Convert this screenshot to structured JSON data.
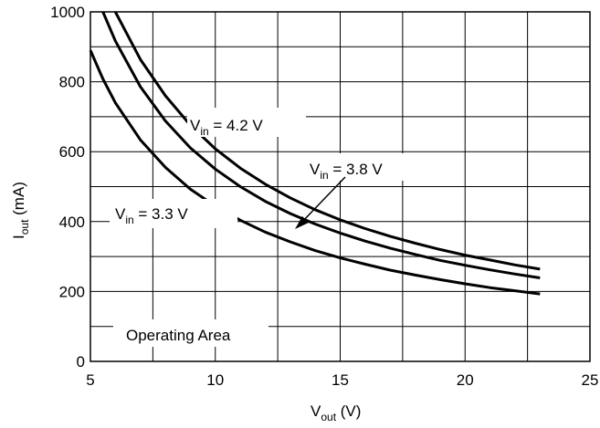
{
  "chart_data": {
    "type": "line",
    "title": "",
    "xlabel": {
      "main": "V",
      "sub": "out",
      "unit": " (V)"
    },
    "ylabel": {
      "main": "I",
      "sub": "out",
      "unit": " (mA)"
    },
    "xlim": [
      5,
      25
    ],
    "ylim": [
      0,
      1000
    ],
    "grid": true,
    "x_ticks": [
      "5",
      "10",
      "15",
      "20",
      "25"
    ],
    "y_ticks": [
      "0",
      "200",
      "400",
      "600",
      "800",
      "1000"
    ],
    "series": [
      {
        "name": "Vin = 3.3 V",
        "x": [
          5.0,
          5.5,
          6,
          7,
          8,
          9,
          10,
          11,
          12,
          13,
          14,
          15,
          16,
          17,
          18,
          19,
          20,
          21,
          22,
          23
        ],
        "y": [
          890,
          808,
          740,
          634,
          555,
          493,
          444,
          404,
          370,
          342,
          317,
          296,
          278,
          261,
          247,
          234,
          222,
          211,
          202,
          193
        ]
      },
      {
        "name": "Vin = 3.8 V",
        "x": [
          5.5,
          6,
          7,
          8,
          9,
          10,
          11,
          12,
          13,
          14,
          15,
          16,
          17,
          18,
          19,
          20,
          21,
          22,
          23
        ],
        "y": [
          1000,
          917,
          786,
          688,
          611,
          550,
          500,
          458,
          423,
          393,
          367,
          344,
          324,
          306,
          289,
          275,
          262,
          250,
          239
        ]
      },
      {
        "name": "Vin = 4.2 V",
        "x": [
          6,
          7,
          8,
          9,
          10,
          11,
          12,
          13,
          14,
          15,
          16,
          17,
          18,
          19,
          20,
          21,
          22,
          23
        ],
        "y": [
          1000,
          864,
          760,
          676,
          608,
          553,
          507,
          468,
          434,
          405,
          380,
          358,
          338,
          320,
          304,
          290,
          276,
          264
        ]
      }
    ],
    "annotations": {
      "vin_42": {
        "prefix": "V",
        "sub": "in",
        "suffix": " = 4.2 V"
      },
      "vin_38": {
        "prefix": "V",
        "sub": "in",
        "suffix": " = 3.8 V"
      },
      "vin_33": {
        "prefix": "V",
        "sub": "in",
        "suffix": " = 3.3 V"
      },
      "operating_area": "Operating Area"
    }
  }
}
